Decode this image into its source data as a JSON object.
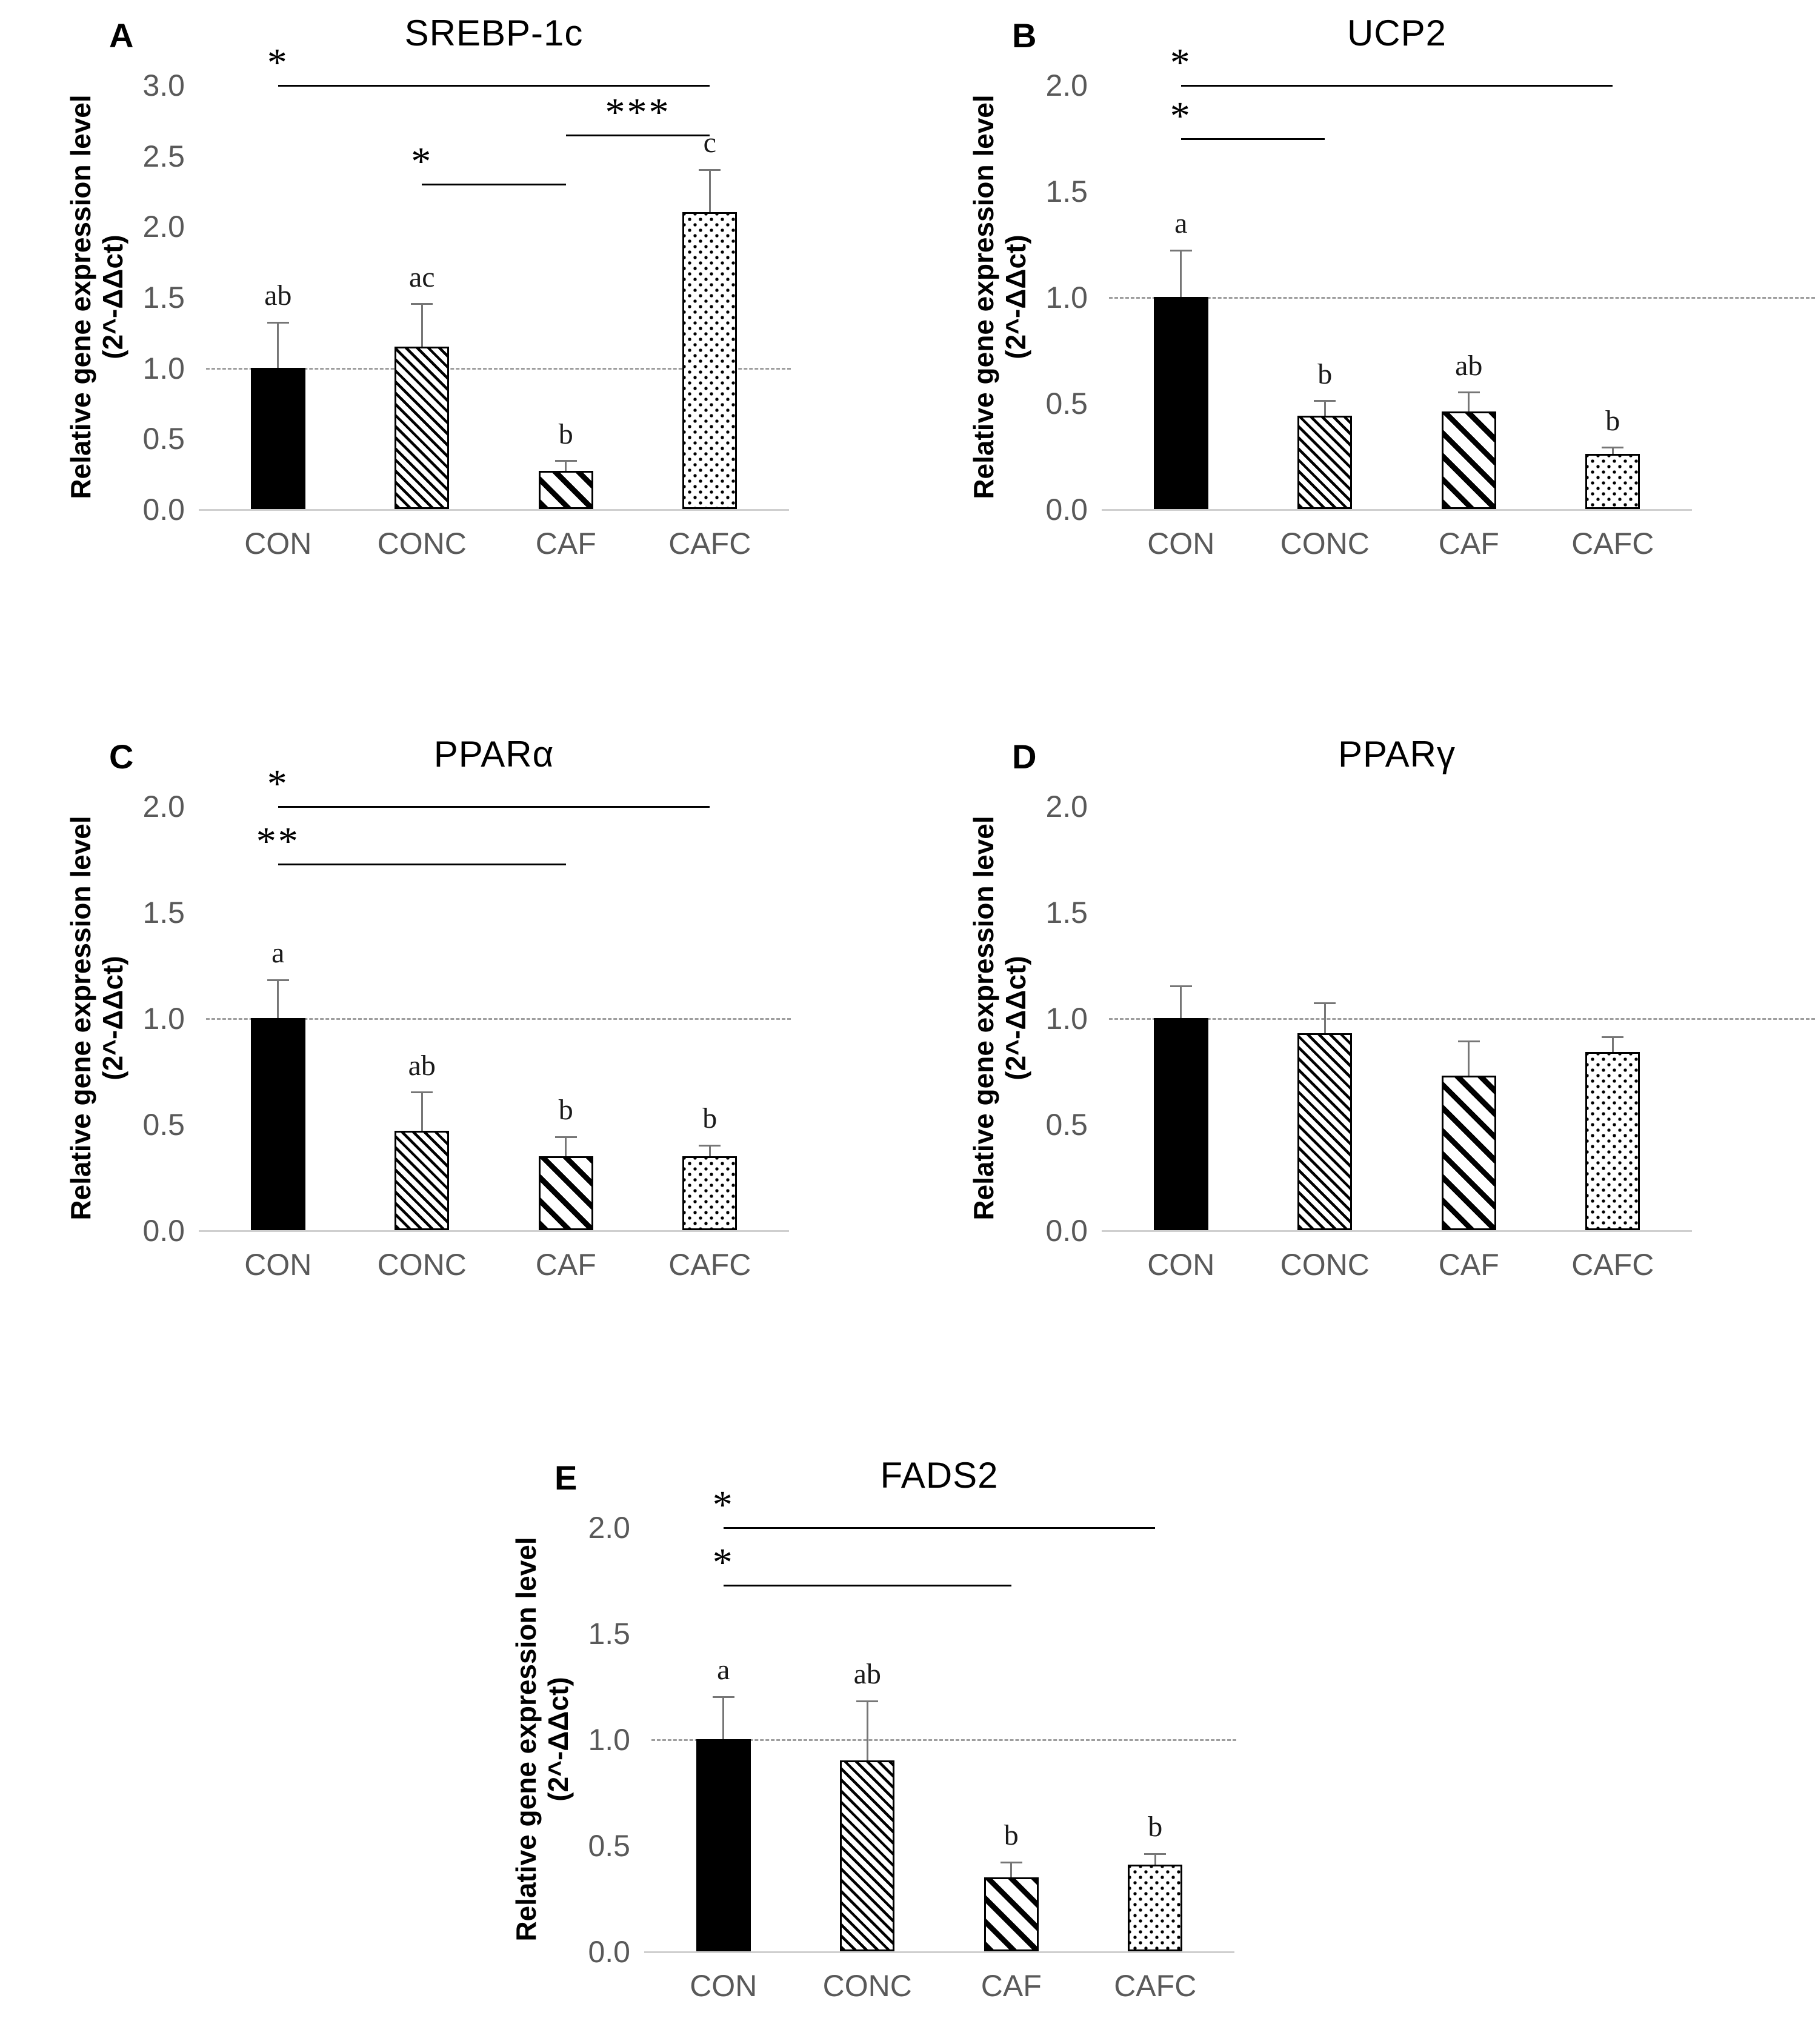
{
  "figure": {
    "background": "#ffffff",
    "text_color": "#000000",
    "muted_color": "#595959",
    "error_bar_color": "#767676",
    "reference_line_color": "#9e9e9e",
    "y_axis_label_line1": "Relative gene expression level",
    "y_axis_label_line2": "(2^-ΔΔct)"
  },
  "chart_data": [
    {
      "panel": "A",
      "type": "bar",
      "title": "SREBP-1c",
      "ylabel": "Relative gene expression level (2^-ΔΔct)",
      "categories": [
        "CON",
        "CONC",
        "CAF",
        "CAFC"
      ],
      "values": [
        1.0,
        1.15,
        0.27,
        2.1
      ],
      "errors": [
        0.32,
        0.3,
        0.07,
        0.3
      ],
      "letters": [
        "ab",
        "ac",
        "b",
        "c"
      ],
      "patterns": [
        "solid",
        "stripe-fine",
        "stripe-wide",
        "dots"
      ],
      "ylim": [
        0,
        3.0
      ],
      "ytick_step": 0.5,
      "grid": false,
      "legend": false,
      "reference_line": 1.0,
      "ref_extends": false,
      "significance": [
        {
          "from": 0,
          "to": 3,
          "y": 3.0,
          "label": "*",
          "align": "from"
        },
        {
          "from": 2,
          "to": 3,
          "y": 2.65,
          "label": "***",
          "align": "center"
        },
        {
          "from": 1,
          "to": 2,
          "y": 2.3,
          "label": "*",
          "align": "from"
        }
      ]
    },
    {
      "panel": "B",
      "type": "bar",
      "title": "UCP2",
      "ylabel": "Relative gene expression level (2^-ΔΔct)",
      "categories": [
        "CON",
        "CONC",
        "CAF",
        "CAFC"
      ],
      "values": [
        1.0,
        0.44,
        0.46,
        0.26
      ],
      "errors": [
        0.22,
        0.07,
        0.09,
        0.03
      ],
      "letters": [
        "a",
        "b",
        "ab",
        "b"
      ],
      "patterns": [
        "solid",
        "stripe-fine",
        "stripe-wide",
        "dots"
      ],
      "ylim": [
        0,
        2.0
      ],
      "ytick_step": 0.5,
      "grid": false,
      "legend": false,
      "reference_line": 1.0,
      "ref_extends": true,
      "significance": [
        {
          "from": 0,
          "to": 3,
          "y": 2.0,
          "label": "*",
          "align": "from"
        },
        {
          "from": 0,
          "to": 1,
          "y": 1.75,
          "label": "*",
          "align": "from"
        }
      ]
    },
    {
      "panel": "C",
      "type": "bar",
      "title": "PPARα",
      "ylabel": "Relative gene expression level (2^-ΔΔct)",
      "categories": [
        "CON",
        "CONC",
        "CAF",
        "CAFC"
      ],
      "values": [
        1.0,
        0.47,
        0.35,
        0.35
      ],
      "errors": [
        0.18,
        0.18,
        0.09,
        0.05
      ],
      "letters": [
        "a",
        "ab",
        "b",
        "b"
      ],
      "patterns": [
        "solid",
        "stripe-fine",
        "stripe-wide",
        "dots"
      ],
      "ylim": [
        0,
        2.0
      ],
      "ytick_step": 0.5,
      "grid": false,
      "legend": false,
      "reference_line": 1.0,
      "ref_extends": false,
      "significance": [
        {
          "from": 0,
          "to": 3,
          "y": 2.0,
          "label": "*",
          "align": "from"
        },
        {
          "from": 0,
          "to": 2,
          "y": 1.73,
          "label": "**",
          "align": "from"
        }
      ]
    },
    {
      "panel": "D",
      "type": "bar",
      "title": "PPARγ",
      "ylabel": "Relative gene expression level (2^-ΔΔct)",
      "categories": [
        "CON",
        "CONC",
        "CAF",
        "CAFC"
      ],
      "values": [
        1.0,
        0.93,
        0.73,
        0.84
      ],
      "errors": [
        0.15,
        0.14,
        0.16,
        0.07
      ],
      "letters": [
        "",
        "",
        "",
        ""
      ],
      "patterns": [
        "solid",
        "stripe-fine",
        "stripe-wide",
        "dots"
      ],
      "ylim": [
        0,
        2.0
      ],
      "ytick_step": 0.5,
      "grid": false,
      "legend": false,
      "reference_line": 1.0,
      "ref_extends": true,
      "significance": []
    },
    {
      "panel": "E",
      "type": "bar",
      "title": "FADS2",
      "ylabel": "Relative gene expression level (2^-ΔΔct)",
      "categories": [
        "CON",
        "CONC",
        "CAF",
        "CAFC"
      ],
      "values": [
        1.0,
        0.9,
        0.35,
        0.41
      ],
      "errors": [
        0.2,
        0.28,
        0.07,
        0.05
      ],
      "letters": [
        "a",
        "ab",
        "b",
        "b"
      ],
      "patterns": [
        "solid",
        "stripe-fine",
        "stripe-wide",
        "dots"
      ],
      "ylim": [
        0,
        2.0
      ],
      "ytick_step": 0.5,
      "grid": false,
      "legend": false,
      "reference_line": 1.0,
      "ref_extends": false,
      "significance": [
        {
          "from": 0,
          "to": 3,
          "y": 2.0,
          "label": "*",
          "align": "from"
        },
        {
          "from": 0,
          "to": 2,
          "y": 1.73,
          "label": "*",
          "align": "from"
        }
      ]
    }
  ]
}
